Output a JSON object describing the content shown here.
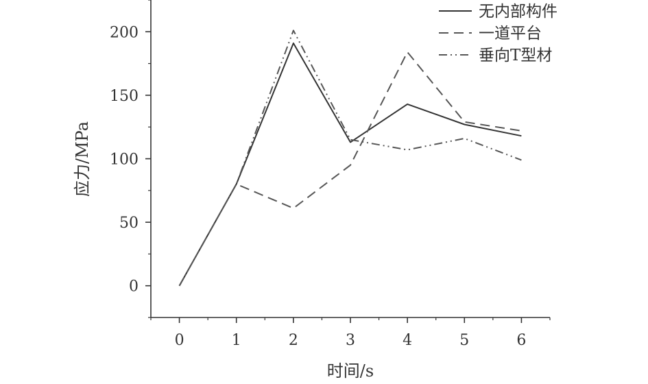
{
  "chart_data": {
    "type": "line",
    "xlabel": "时间/s",
    "ylabel": "应力/MPa",
    "x": [
      0,
      1,
      2,
      3,
      4,
      5,
      6
    ],
    "xlim": [
      -0.5,
      6.5
    ],
    "ylim": [
      -25,
      225
    ],
    "xticks": [
      "0",
      "1",
      "2",
      "3",
      "4",
      "5",
      "6"
    ],
    "yticks": [
      "0",
      "50",
      "100",
      "150",
      "200"
    ],
    "legend_position": "top-right",
    "grid": false,
    "series": [
      {
        "name": "无内部构件",
        "style": "solid",
        "color": "#333333",
        "values": [
          0,
          80,
          191,
          113,
          143,
          127,
          118
        ]
      },
      {
        "name": "一道平台",
        "style": "dash",
        "color": "#555555",
        "values": [
          0,
          80,
          61,
          95,
          184,
          129,
          122
        ]
      },
      {
        "name": "垂向T型材",
        "style": "dashdotdot",
        "color": "#555555",
        "values": [
          0,
          80,
          201,
          115,
          107,
          116,
          99
        ]
      }
    ]
  }
}
